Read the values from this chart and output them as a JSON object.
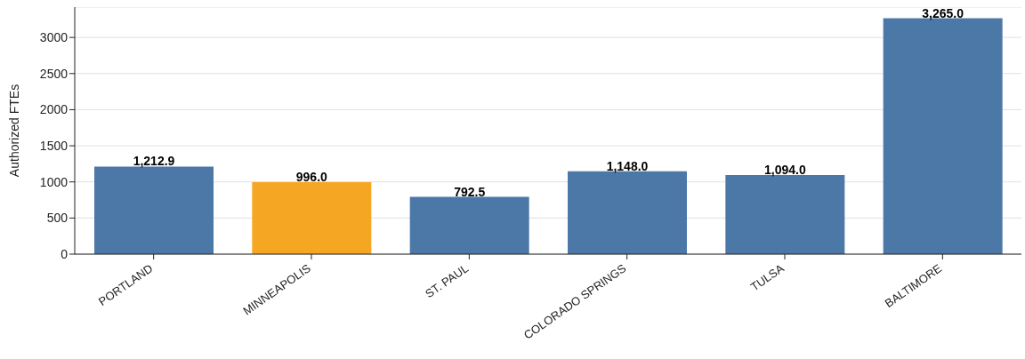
{
  "chart_data": {
    "type": "bar",
    "ylabel": "Authorized FTEs",
    "categories": [
      "PORTLAND",
      "MINNEAPOLIS",
      "ST. PAUL",
      "COLORADO SPRINGS",
      "TULSA",
      "BALTIMORE"
    ],
    "values": [
      1212.9,
      996.0,
      792.5,
      1148.0,
      1094.0,
      3265.0
    ],
    "colors": [
      "#4c78a8",
      "#f5a623",
      "#4c78a8",
      "#4c78a8",
      "#4c78a8",
      "#4c78a8"
    ],
    "value_labels": [
      "1,212.9",
      "996.0",
      "792.5",
      "1,148.0",
      "1,094.0",
      "3,265.0"
    ],
    "ylim": [
      0,
      3420
    ],
    "yticks": [
      0,
      500,
      1000,
      1500,
      2000,
      2500,
      3000
    ],
    "grid": "y"
  }
}
